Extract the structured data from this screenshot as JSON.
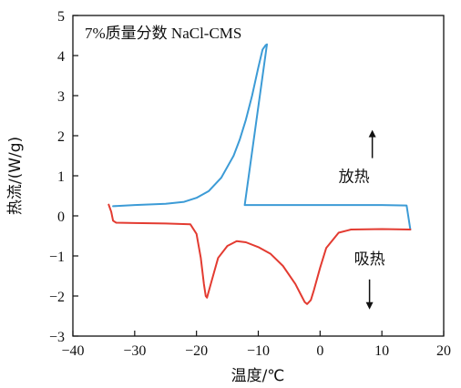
{
  "chart_data": {
    "type": "line",
    "title": "7%质量分数 NaCl-CMS",
    "xlabel": "温度/℃",
    "ylabel": "热流/(W/g)",
    "xlim": [
      -40,
      20
    ],
    "ylim": [
      -3,
      5
    ],
    "x_ticks": [
      -40,
      -30,
      -20,
      -10,
      0,
      10,
      20
    ],
    "y_ticks": [
      -3,
      -2,
      -1,
      0,
      1,
      2,
      3,
      4,
      5
    ],
    "x_tick_labels": [
      "−40",
      "−30",
      "−20",
      "−10",
      "0",
      "10",
      "20"
    ],
    "y_tick_labels": [
      "−3",
      "−2",
      "−1",
      "0",
      "1",
      "2",
      "3",
      "4",
      "5"
    ],
    "grid": false,
    "annotations": [
      {
        "text": "放热",
        "x": 5.5,
        "y": 0.85,
        "arrow": "up"
      },
      {
        "text": "吸热",
        "x": 8,
        "y": -1.2,
        "arrow": "down"
      }
    ],
    "series": [
      {
        "color": "#3c9bd6",
        "x": [
          -33.5,
          -30,
          -25,
          -22,
          -20,
          -18,
          -16,
          -14,
          -13,
          -12,
          -11,
          -10,
          -9.3,
          -8.8,
          -8.6,
          -12.2,
          0,
          10,
          14,
          14.6
        ],
        "y": [
          0.24,
          0.27,
          0.3,
          0.35,
          0.45,
          0.62,
          0.95,
          1.5,
          1.9,
          2.4,
          3.0,
          3.7,
          4.15,
          4.26,
          4.28,
          0.27,
          0.27,
          0.27,
          0.26,
          -0.34
        ]
      },
      {
        "color": "#e33b31",
        "x": [
          -34.2,
          -33.8,
          -33.5,
          -33,
          -30,
          -25,
          -21,
          -20,
          -19.3,
          -18.8,
          -18.5,
          -18.3,
          -17.5,
          -16.5,
          -15,
          -13.5,
          -12,
          -10,
          -8,
          -6,
          -4,
          -3,
          -2.5,
          -2.1,
          -1.5,
          -1,
          0,
          1,
          3,
          5,
          10,
          14.6
        ],
        "y": [
          0.28,
          0.1,
          -0.12,
          -0.17,
          -0.18,
          -0.19,
          -0.21,
          -0.45,
          -1.05,
          -1.7,
          -2.0,
          -2.04,
          -1.6,
          -1.05,
          -0.75,
          -0.63,
          -0.66,
          -0.78,
          -0.95,
          -1.25,
          -1.7,
          -2.0,
          -2.15,
          -2.2,
          -2.1,
          -1.85,
          -1.3,
          -0.8,
          -0.42,
          -0.34,
          -0.33,
          -0.34
        ]
      }
    ]
  }
}
